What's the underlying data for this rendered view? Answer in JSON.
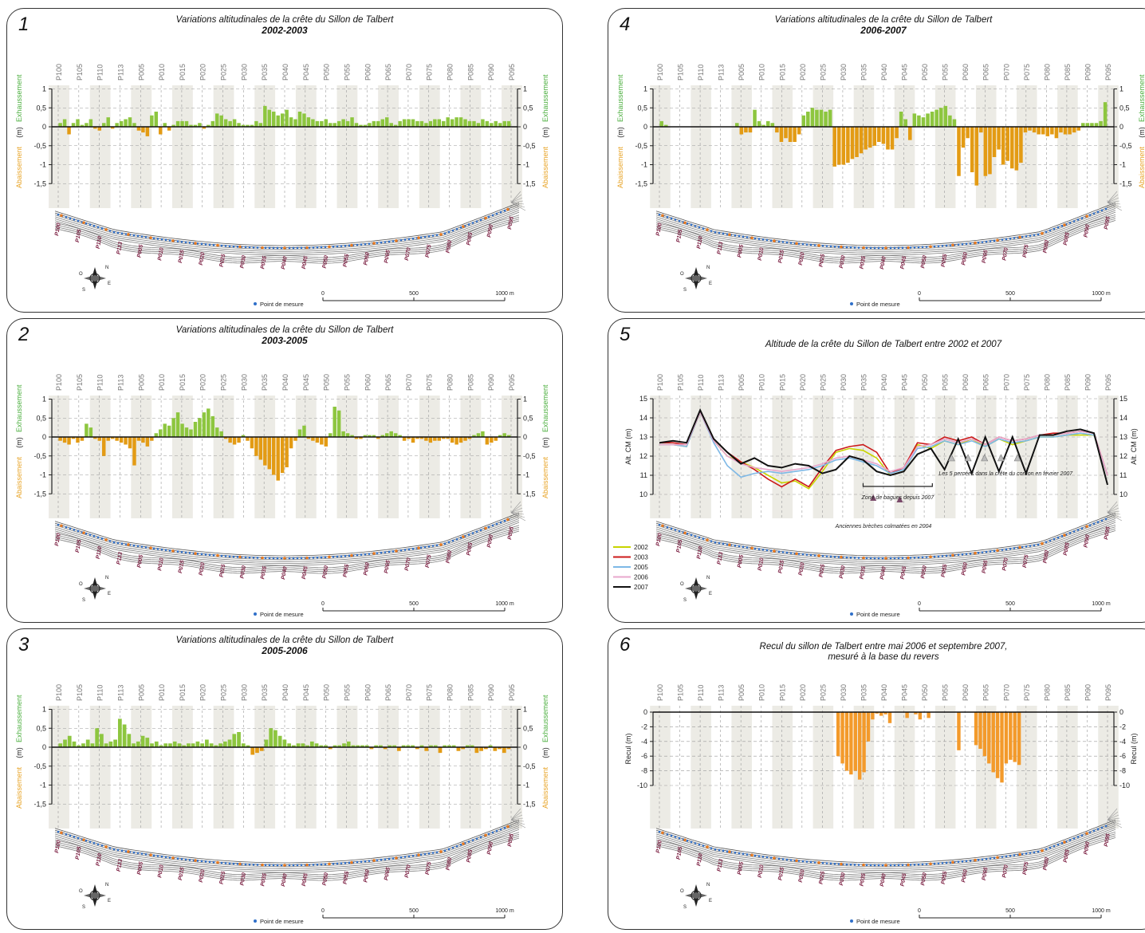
{
  "profiles": [
    "P100",
    "P105",
    "P110",
    "P113",
    "P005",
    "P010",
    "P015",
    "P020",
    "P025",
    "P030",
    "P035",
    "P040",
    "P045",
    "P050",
    "P055",
    "P060",
    "P065",
    "P070",
    "P075",
    "P080",
    "P085",
    "P090",
    "P095"
  ],
  "map_labels": [
    "P100",
    "P105",
    "P110",
    "P113",
    "P005",
    "P010",
    "P015",
    "P020",
    "P025",
    "P030",
    "P035",
    "P040",
    "P045",
    "P050",
    "P055",
    "P060",
    "P065",
    "P070",
    "P075",
    "P080",
    "P085",
    "P090",
    "P095"
  ],
  "legend_point": "Point de mesure",
  "scale_labels": [
    "0",
    "500",
    "1000 m"
  ],
  "compass": {
    "n": "N",
    "s": "S",
    "e": "E",
    "o": "O"
  },
  "colors": {
    "gain": "#8dc63f",
    "loss": "#e39b14",
    "label_gain": "#4caf3f",
    "label_loss": "#e8a52a",
    "recul": "#f39a2b",
    "points": "#2f6fc9",
    "map_points": "#e87a20"
  },
  "panels": [
    {
      "num": "1",
      "title": "Variations altitudinales de la crête du Sillon de Talbert",
      "subtitle": "2002-2003",
      "type": "var",
      "y_label_unit": "(m)",
      "y_label_gain": "Exhaussement",
      "y_label_loss": "Abaissement",
      "y_ticks": [
        "1",
        "0,5",
        "0",
        "-0,5",
        "-1",
        "-1,5"
      ],
      "chart_data": {
        "type": "bar",
        "ylim": [
          -1.5,
          1
        ],
        "values": [
          0.1,
          0.2,
          -0.2,
          0.1,
          0.2,
          0.05,
          0.1,
          0.2,
          -0.05,
          -0.1,
          0.1,
          0.25,
          -0.05,
          0.1,
          0.15,
          0.2,
          0.25,
          0.1,
          -0.1,
          -0.15,
          -0.25,
          0.3,
          0.4,
          -0.2,
          0.1,
          -0.1,
          0.05,
          0.15,
          0.15,
          0.15,
          0.05,
          0.05,
          0.1,
          -0.05,
          0.05,
          0.15,
          0.35,
          0.3,
          0.2,
          0.15,
          0.2,
          0.1,
          0.05,
          0.05,
          0.05,
          0.15,
          0.1,
          0.55,
          0.45,
          0.4,
          0.3,
          0.35,
          0.45,
          0.25,
          0.2,
          0.4,
          0.35,
          0.25,
          0.2,
          0.15,
          0.15,
          0.2,
          0.1,
          0.1,
          0.15,
          0.2,
          0.15,
          0.25,
          0.1,
          0.05,
          0.05,
          0.1,
          0.15,
          0.15,
          0.2,
          0.25,
          0.1,
          0.05,
          0.15,
          0.2,
          0.2,
          0.2,
          0.15,
          0.15,
          0.1,
          0.15,
          0.2,
          0.2,
          0.15,
          0.25,
          0.2,
          0.25,
          0.25,
          0.2,
          0.15,
          0.15,
          0.1,
          0.2,
          0.15,
          0.1,
          0.15,
          0.1,
          0.15,
          0.15
        ]
      }
    },
    {
      "num": "2",
      "title": "Variations altitudinales de la crête du Sillon de Talbert",
      "subtitle": "2003-2005",
      "type": "var",
      "y_label_unit": "(m)",
      "y_label_gain": "Exhaussement",
      "y_label_loss": "Abaissement",
      "y_ticks": [
        "1",
        "0,5",
        "0",
        "-0,5",
        "-1",
        "-1,5"
      ],
      "chart_data": {
        "type": "bar",
        "ylim": [
          -1.5,
          1
        ],
        "values": [
          -0.1,
          -0.15,
          -0.2,
          -0.05,
          -0.15,
          -0.1,
          0.35,
          0.25,
          -0.05,
          -0.1,
          -0.5,
          -0.1,
          -0.05,
          -0.1,
          -0.15,
          -0.2,
          -0.3,
          -0.75,
          -0.1,
          -0.15,
          -0.25,
          -0.1,
          0.1,
          0.2,
          0.35,
          0.3,
          0.5,
          0.65,
          0.35,
          0.25,
          0.2,
          0.4,
          0.5,
          0.65,
          0.75,
          0.55,
          0.25,
          0.15,
          -0.05,
          -0.15,
          -0.2,
          -0.15,
          0.05,
          -0.1,
          -0.3,
          -0.5,
          -0.6,
          -0.75,
          -0.85,
          -1.0,
          -1.15,
          -0.95,
          -0.8,
          -0.3,
          -0.1,
          0.2,
          0.3,
          -0.05,
          -0.1,
          -0.15,
          -0.2,
          -0.25,
          0.1,
          0.8,
          0.7,
          0.15,
          0.1,
          0.05,
          -0.05,
          -0.05,
          0.05,
          0.05,
          0.05,
          -0.05,
          0.05,
          0.1,
          0.15,
          0.1,
          0.05,
          -0.1,
          -0.05,
          -0.15,
          -0.05,
          -0.05,
          -0.1,
          -0.15,
          -0.1,
          -0.1,
          -0.05,
          -0.05,
          -0.15,
          -0.2,
          -0.15,
          -0.1,
          -0.05,
          0.05,
          0.1,
          0.15,
          -0.2,
          -0.15,
          -0.1,
          0.05,
          0.1,
          0.05
        ]
      }
    },
    {
      "num": "3",
      "title": "Variations altitudinales de la crête du Sillon de Talbert",
      "subtitle": "2005-2006",
      "type": "var",
      "y_label_unit": "(m)",
      "y_label_gain": "Exhaussement",
      "y_label_loss": "Abaissement",
      "y_ticks": [
        "1",
        "0,5",
        "0",
        "-0,5",
        "-1",
        "-1,5"
      ],
      "chart_data": {
        "type": "bar",
        "ylim": [
          -1.5,
          1
        ],
        "values": [
          0.1,
          0.2,
          0.3,
          0.15,
          0.05,
          0.1,
          0.2,
          0.1,
          0.5,
          0.35,
          0.1,
          0.15,
          0.2,
          0.75,
          0.6,
          0.35,
          0.1,
          0.15,
          0.3,
          0.25,
          0.1,
          0.15,
          0.05,
          0.1,
          0.1,
          0.15,
          0.1,
          0.05,
          0.1,
          0.1,
          0.15,
          0.1,
          0.2,
          0.1,
          0.05,
          0.1,
          0.15,
          0.2,
          0.35,
          0.4,
          0.1,
          0.05,
          -0.2,
          -0.15,
          -0.1,
          0.2,
          0.5,
          0.45,
          0.3,
          0.2,
          0.1,
          0.05,
          0.1,
          0.1,
          0.05,
          0.15,
          0.1,
          0.05,
          0.05,
          -0.05,
          0.05,
          0.05,
          0.1,
          0.15,
          0.05,
          0.05,
          0.05,
          0.05,
          -0.05,
          0.05,
          0.05,
          -0.05,
          0.05,
          0.05,
          -0.1,
          0.05,
          0.05,
          0.05,
          -0.05,
          0.05,
          -0.1,
          0.05,
          0.05,
          -0.15,
          0.05,
          0.05,
          0.05,
          -0.1,
          -0.05,
          0.05,
          0.05,
          -0.15,
          -0.1,
          -0.05,
          0.05,
          -0.1,
          -0.05,
          -0.15,
          -0.05
        ]
      }
    },
    {
      "num": "4",
      "title": "Variations altitudinales de la crête du Sillon de Talbert",
      "subtitle": "2006-2007",
      "type": "var",
      "y_label_unit": "(m)",
      "y_label_gain": "Exhaussement",
      "y_label_loss": "Abaissement",
      "y_ticks": [
        "1",
        "0,5",
        "0",
        "-0,5",
        "-1",
        "-1,5"
      ],
      "chart_data": {
        "type": "bar",
        "ylim": [
          -1.5,
          1
        ],
        "values": [
          0.15,
          0.05,
          0,
          0,
          0,
          0,
          0,
          0,
          0,
          0,
          0,
          0,
          0,
          0,
          0,
          0,
          0,
          0.1,
          -0.2,
          -0.15,
          -0.15,
          0.45,
          0.15,
          0.05,
          0.15,
          0.1,
          -0.15,
          -0.4,
          -0.3,
          -0.4,
          -0.4,
          -0.2,
          0.3,
          0.4,
          0.5,
          0.45,
          0.45,
          0.4,
          0.45,
          -1.05,
          -1.0,
          -1.0,
          -0.95,
          -0.85,
          -0.8,
          -0.7,
          -0.6,
          -0.55,
          -0.5,
          -0.4,
          -0.45,
          -0.6,
          -0.6,
          -0.3,
          0.4,
          0.2,
          -0.35,
          0.35,
          0.3,
          0.25,
          0.35,
          0.4,
          0.45,
          0.5,
          0.55,
          0.3,
          0.2,
          -1.3,
          -0.55,
          -0.3,
          -1.2,
          -1.55,
          -0.15,
          -1.3,
          -1.25,
          -0.8,
          -0.6,
          -1.0,
          -0.9,
          -1.1,
          -1.15,
          -0.95,
          -0.15,
          -0.1,
          -0.15,
          -0.2,
          -0.2,
          -0.25,
          -0.2,
          -0.3,
          -0.15,
          -0.2,
          -0.2,
          -0.15,
          -0.1,
          0.1,
          0.1,
          0.1,
          0.1,
          0.15,
          0.65
        ]
      }
    },
    {
      "num": "5",
      "title": "Altitude de la crête du Sillon de Talbert entre 2002 et 2007",
      "subtitle": "",
      "type": "line",
      "y_label": "Alt. CM (m)",
      "y_ticks": [
        "15",
        "14",
        "13",
        "12",
        "11",
        "10"
      ],
      "annotations": {
        "breches": "Anciennes brèches colmatées en 2004",
        "zone": "Zone de bagues depuis 2007",
        "percees": "Les 5 percées dans la crête du cordon en février 2007"
      },
      "chart_data": {
        "type": "line",
        "ylim": [
          10,
          15
        ],
        "x": [
          0,
          3,
          6,
          9,
          12,
          15,
          18,
          21,
          24,
          27,
          30,
          33,
          36,
          39,
          42,
          45,
          48,
          51,
          54,
          57,
          60,
          63,
          66,
          69,
          72,
          75,
          78,
          81,
          84,
          87,
          90,
          93,
          96,
          99
        ],
        "series": [
          {
            "name": "2002",
            "color": "#c8d400",
            "values": [
              12.6,
              12.6,
              12.5,
              14.3,
              12.8,
              12.0,
              11.7,
              11.4,
              11.0,
              10.6,
              10.7,
              10.3,
              11.2,
              12.2,
              12.4,
              12.3,
              11.9,
              11.0,
              11.2,
              12.6,
              12.4,
              12.8,
              12.6,
              12.9,
              12.5,
              12.9,
              12.6,
              12.8,
              13.0,
              13.0,
              13.1,
              13.1,
              13.1,
              11.0
            ]
          },
          {
            "name": "2003",
            "color": "#cc1a1a",
            "values": [
              12.7,
              12.7,
              12.6,
              14.3,
              12.9,
              12.2,
              11.7,
              11.3,
              10.8,
              10.4,
              10.8,
              10.4,
              11.4,
              12.3,
              12.5,
              12.6,
              12.2,
              11.1,
              11.4,
              12.7,
              12.6,
              13.0,
              12.8,
              13.0,
              12.6,
              13.0,
              12.8,
              12.9,
              13.1,
              13.2,
              13.2,
              13.3,
              13.2,
              11.0
            ]
          },
          {
            "name": "2005",
            "color": "#7db8e6",
            "values": [
              12.6,
              12.6,
              12.5,
              14.3,
              12.7,
              11.5,
              10.9,
              11.1,
              11.2,
              11.1,
              11.2,
              11.3,
              11.5,
              11.8,
              11.9,
              11.7,
              11.5,
              11.1,
              11.3,
              12.4,
              12.5,
              12.8,
              12.6,
              12.8,
              12.5,
              12.9,
              12.7,
              12.8,
              13.0,
              13.0,
              13.1,
              13.2,
              13.1,
              11.0
            ]
          },
          {
            "name": "2006",
            "color": "#e8a7cc",
            "values": [
              12.6,
              12.6,
              12.6,
              14.3,
              12.8,
              12.0,
              11.6,
              11.4,
              11.3,
              11.2,
              11.3,
              11.4,
              11.6,
              11.9,
              12.0,
              11.8,
              11.6,
              11.2,
              11.4,
              12.5,
              12.6,
              12.9,
              12.7,
              12.9,
              12.6,
              13.0,
              12.8,
              12.9,
              13.1,
              13.1,
              13.2,
              13.3,
              13.2,
              11.0
            ]
          },
          {
            "name": "2007",
            "color": "#111111",
            "values": [
              12.7,
              12.8,
              12.7,
              14.4,
              12.9,
              12.2,
              11.6,
              11.9,
              11.5,
              11.4,
              11.6,
              11.5,
              11.1,
              11.3,
              12.0,
              11.8,
              11.2,
              11.0,
              11.2,
              12.1,
              12.4,
              11.3,
              12.9,
              11.1,
              13.0,
              11.2,
              13.0,
              11.1,
              13.1,
              13.1,
              13.3,
              13.4,
              13.2,
              10.5
            ]
          }
        ]
      }
    },
    {
      "num": "6",
      "title": "Recul du sillon de Talbert entre mai 2006 et septembre 2007,",
      "subtitle": "mesuré à la base du revers",
      "type": "recul",
      "y_label": "Recul (m)",
      "y_ticks": [
        "0",
        "-2",
        "-4",
        "-6",
        "-8",
        "-10"
      ],
      "chart_data": {
        "type": "bar",
        "ylim": [
          -10,
          0
        ],
        "values": [
          0,
          0,
          0,
          0,
          0,
          0,
          0,
          0,
          0,
          0,
          0,
          0,
          0,
          0,
          0,
          0,
          0,
          0,
          0,
          0,
          0,
          0,
          0,
          0,
          0,
          0,
          0,
          0,
          0,
          0,
          0,
          0,
          0,
          0,
          0,
          0,
          0,
          0,
          0,
          0,
          0,
          -6.0,
          -7.0,
          -8.0,
          -8.5,
          -8.0,
          -9.2,
          -8.2,
          -4.0,
          -1.0,
          -0.2,
          -0.5,
          -0.3,
          -1.5,
          0,
          0,
          0,
          -0.8,
          0,
          -0.3,
          -1.0,
          0,
          -0.8,
          0,
          0,
          0,
          0,
          0,
          0,
          -5.2,
          0,
          0,
          0,
          -4.5,
          -5.0,
          -6.0,
          -7.0,
          -8.2,
          -9.0,
          -9.6,
          -7.0,
          -6.5,
          -6.8,
          -7.2,
          0,
          0,
          0,
          0,
          0,
          0,
          0,
          0,
          0,
          0,
          0,
          0,
          0,
          0,
          0,
          0,
          0,
          0,
          0,
          0
        ]
      }
    }
  ]
}
